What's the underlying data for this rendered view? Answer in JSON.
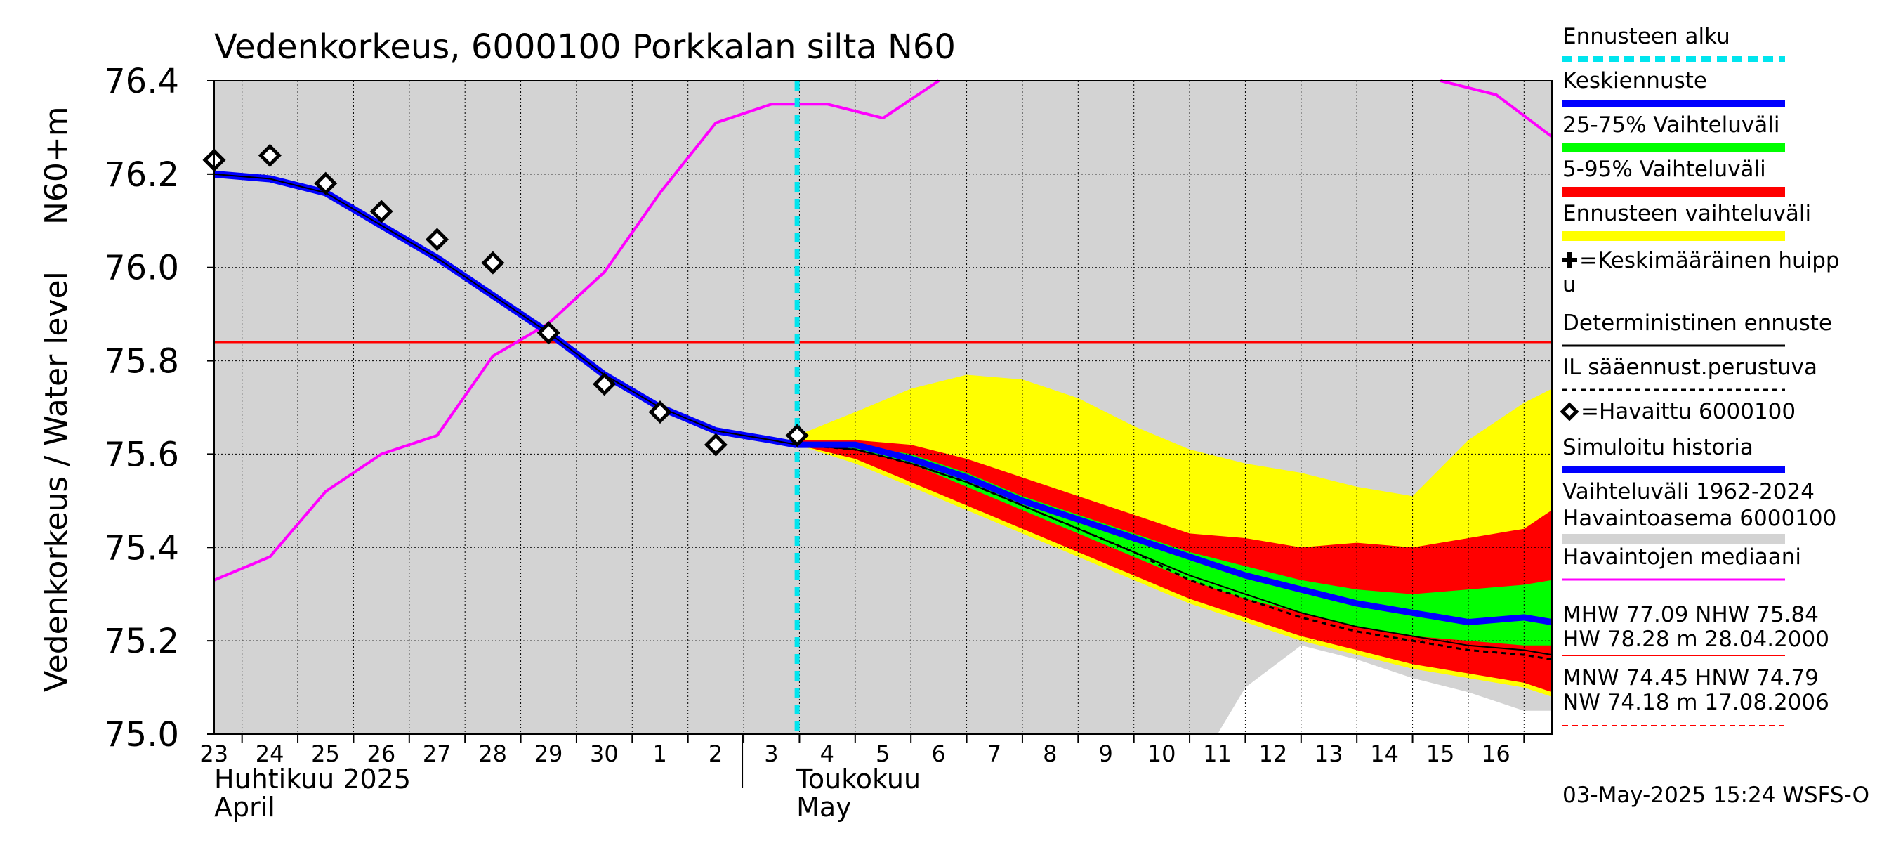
{
  "chart_data": {
    "type": "line",
    "title": "Vedenkorkeus, 6000100 Porkkalan silta N60",
    "ylabel_left": "Vedenkorkeus / Water level",
    "ylabel_right": "N60+m",
    "ylim": [
      75.0,
      76.4
    ],
    "yticks": [
      "75.0",
      "75.2",
      "75.4",
      "75.6",
      "75.8",
      "76.0",
      "76.2",
      "76.4"
    ],
    "x_range": [
      "2025-04-22T12:00",
      "2025-05-16T12:00"
    ],
    "xticks": [
      {
        "label": "23",
        "date": "2025-04-23"
      },
      {
        "label": "24",
        "date": "2025-04-24"
      },
      {
        "label": "25",
        "date": "2025-04-25"
      },
      {
        "label": "26",
        "date": "2025-04-26"
      },
      {
        "label": "27",
        "date": "2025-04-27"
      },
      {
        "label": "28",
        "date": "2025-04-28"
      },
      {
        "label": "29",
        "date": "2025-04-29"
      },
      {
        "label": "30",
        "date": "2025-04-30"
      },
      {
        "label": "1",
        "date": "2025-05-01"
      },
      {
        "label": "2",
        "date": "2025-05-02"
      },
      {
        "label": "3",
        "date": "2025-05-03"
      },
      {
        "label": "4",
        "date": "2025-05-04"
      },
      {
        "label": "5",
        "date": "2025-05-05"
      },
      {
        "label": "6",
        "date": "2025-05-06"
      },
      {
        "label": "7",
        "date": "2025-05-07"
      },
      {
        "label": "8",
        "date": "2025-05-08"
      },
      {
        "label": "9",
        "date": "2025-05-09"
      },
      {
        "label": "10",
        "date": "2025-05-10"
      },
      {
        "label": "11",
        "date": "2025-05-11"
      },
      {
        "label": "12",
        "date": "2025-05-12"
      },
      {
        "label": "13",
        "date": "2025-05-13"
      },
      {
        "label": "14",
        "date": "2025-05-14"
      },
      {
        "label": "15",
        "date": "2025-05-15"
      },
      {
        "label": "16",
        "date": "2025-05-16"
      }
    ],
    "month_labels": [
      {
        "line1": "Huhtikuu  2025",
        "line2": "April",
        "date": "2025-04-22T12:00"
      },
      {
        "line1": "Toukokuu",
        "line2": "May",
        "date": "2025-05-02"
      }
    ],
    "forecast_start": "2025-05-02T23:00",
    "reference_line": {
      "name": "NHW",
      "value": 75.84
    },
    "history_range": {
      "x": [
        "2025-04-22T12:00",
        "2025-05-10T12:00",
        "2025-05-11",
        "2025-05-12",
        "2025-05-13",
        "2025-05-14",
        "2025-05-15",
        "2025-05-16",
        "2025-05-16T12:00"
      ],
      "upper": [
        76.4,
        76.4,
        76.4,
        76.4,
        76.4,
        76.4,
        76.4,
        76.4,
        76.4
      ],
      "lower": [
        75.0,
        75.0,
        75.1,
        75.19,
        75.16,
        75.12,
        75.09,
        75.05,
        75.05
      ]
    },
    "median": {
      "x": [
        "2025-04-22T12:00",
        "2025-04-23T12:00",
        "2025-04-24T12:00",
        "2025-04-25T12:00",
        "2025-04-26T12:00",
        "2025-04-27T12:00",
        "2025-04-28T12:00",
        "2025-04-29T12:00",
        "2025-04-30T12:00",
        "2025-05-01T12:00",
        "2025-05-02T12:00",
        "2025-05-03T12:00",
        "2025-05-04T12:00",
        "2025-05-05T12:00",
        "2025-05-06T12:00",
        "2025-05-14T12:00",
        "2025-05-15T12:00",
        "2025-05-16T12:00"
      ],
      "values": [
        75.33,
        75.38,
        75.52,
        75.6,
        75.64,
        75.81,
        75.88,
        75.99,
        76.16,
        76.31,
        76.35,
        76.35,
        76.32,
        76.4,
        76.5,
        76.4,
        76.37,
        76.28
      ]
    },
    "simulated": {
      "x": [
        "2025-04-22T12:00",
        "2025-04-23T12:00",
        "2025-04-24T12:00",
        "2025-04-25T12:00",
        "2025-04-26T12:00",
        "2025-04-27T12:00",
        "2025-04-28T12:00",
        "2025-04-29T12:00",
        "2025-04-30T12:00",
        "2025-05-01T12:00",
        "2025-05-02T12:00",
        "2025-05-02T23:00"
      ],
      "values": [
        76.2,
        76.19,
        76.16,
        76.09,
        76.02,
        75.94,
        75.86,
        75.77,
        75.7,
        75.65,
        75.63,
        75.62
      ]
    },
    "observed": {
      "x": [
        "2025-04-22T12:00",
        "2025-04-23T12:00",
        "2025-04-24T12:00",
        "2025-04-25T12:00",
        "2025-04-26T12:00",
        "2025-04-27T12:00",
        "2025-04-28T12:00",
        "2025-04-29T12:00",
        "2025-04-30T12:00",
        "2025-05-01T12:00",
        "2025-05-02T23:00"
      ],
      "values": [
        76.23,
        76.24,
        76.18,
        76.12,
        76.06,
        76.01,
        75.86,
        75.75,
        75.69,
        75.62,
        75.64
      ]
    },
    "forecast_x": [
      "2025-05-02T23:00",
      "2025-05-04",
      "2025-05-05",
      "2025-05-06",
      "2025-05-07",
      "2025-05-08",
      "2025-05-09",
      "2025-05-10",
      "2025-05-11",
      "2025-05-12",
      "2025-05-13",
      "2025-05-14",
      "2025-05-15",
      "2025-05-16",
      "2025-05-16T12:00"
    ],
    "forecast_range": {
      "upper": [
        75.64,
        75.69,
        75.74,
        75.77,
        75.76,
        75.72,
        75.66,
        75.61,
        75.58,
        75.56,
        75.53,
        75.51,
        75.63,
        75.71,
        75.74
      ],
      "lower": [
        75.62,
        75.58,
        75.53,
        75.48,
        75.43,
        75.38,
        75.33,
        75.28,
        75.24,
        75.2,
        75.17,
        75.14,
        75.12,
        75.1,
        75.08
      ]
    },
    "range_5_95": {
      "upper": [
        75.63,
        75.63,
        75.62,
        75.59,
        75.55,
        75.51,
        75.47,
        75.43,
        75.42,
        75.4,
        75.41,
        75.4,
        75.42,
        75.44,
        75.48
      ],
      "lower": [
        75.62,
        75.59,
        75.54,
        75.49,
        75.44,
        75.39,
        75.34,
        75.29,
        75.25,
        75.21,
        75.18,
        75.15,
        75.13,
        75.11,
        75.09
      ]
    },
    "range_25_75": {
      "upper": [
        75.62,
        75.62,
        75.6,
        75.56,
        75.51,
        75.47,
        75.43,
        75.39,
        75.36,
        75.33,
        75.31,
        75.3,
        75.31,
        75.32,
        75.33
      ],
      "lower": [
        75.62,
        75.61,
        75.58,
        75.53,
        75.48,
        75.43,
        75.38,
        75.33,
        75.29,
        75.26,
        75.23,
        75.21,
        75.2,
        75.19,
        75.19
      ]
    },
    "mean_forecast": [
      75.62,
      75.62,
      75.59,
      75.55,
      75.5,
      75.46,
      75.42,
      75.38,
      75.34,
      75.31,
      75.28,
      75.26,
      75.24,
      75.25,
      75.24
    ],
    "deterministic": [
      75.62,
      75.61,
      75.58,
      75.54,
      75.49,
      75.44,
      75.39,
      75.34,
      75.3,
      75.26,
      75.23,
      75.21,
      75.19,
      75.18,
      75.17
    ],
    "il_forecast": [
      75.62,
      75.61,
      75.58,
      75.54,
      75.49,
      75.44,
      75.39,
      75.33,
      75.29,
      75.25,
      75.22,
      75.2,
      75.18,
      75.17,
      75.16
    ],
    "legend": [
      {
        "type": "dashed",
        "label": "Ennusteen alku",
        "color": "#00e5ee"
      },
      {
        "type": "line",
        "label": "Keskiennuste",
        "color": "#0000ff"
      },
      {
        "type": "bar",
        "label": "25-75% Vaihteluväli",
        "color": "#00ff00"
      },
      {
        "type": "bar",
        "label": "5-95% Vaihteluväli",
        "color": "#ff0000"
      },
      {
        "type": "bar",
        "label": "Ennusteen vaihteluväli",
        "color": "#ffff00"
      },
      {
        "type": "plus",
        "label": "=Keskimääräinen huipp",
        "label2": "u",
        "color": "#000000"
      },
      {
        "type": "thin",
        "label": "Deterministinen ennuste",
        "color": "#000000"
      },
      {
        "type": "dotted",
        "label": "IL sääennust.perustuva",
        "color": "#000000"
      },
      {
        "type": "diamond",
        "label": "=Havaittu 6000100",
        "color": "#000000"
      },
      {
        "type": "line",
        "label": "Simuloitu historia",
        "color": "#0000ff"
      },
      {
        "type": "grey",
        "label": "Vaihteluväli 1962-2024",
        "label2": " Havaintoasema 6000100",
        "color": "#d3d3d3"
      },
      {
        "type": "thin",
        "label": "Havaintojen mediaani",
        "color": "#ff00ff"
      }
    ],
    "stats": {
      "line1": "MHW  77.09 NHW  75.84",
      "line2": "HW  78.28 m 28.04.2000",
      "line3": "MNW  74.45 HNW  74.79",
      "line4": "NW  74.18 m 17.08.2006"
    },
    "timestamp": "03-May-2025 15:24 WSFS-O",
    "colors": {
      "grey": "#d3d3d3",
      "yellow": "#ffff00",
      "red": "#ff0000",
      "green": "#00ff00",
      "blue": "#0000ff",
      "magenta": "#ff00ff",
      "cyan": "#00e5ee",
      "nhw": "#ff0000"
    }
  }
}
